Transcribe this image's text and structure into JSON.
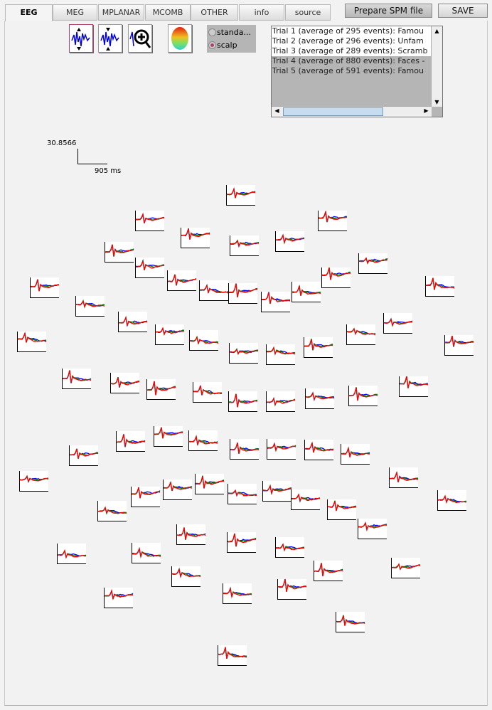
{
  "tabs": [
    {
      "label": "EEG",
      "active": true
    },
    {
      "label": "MEG"
    },
    {
      "label": "MPLANAR"
    },
    {
      "label": "MCOMB"
    },
    {
      "label": "OTHER"
    },
    {
      "label": "info"
    },
    {
      "label": "source"
    }
  ],
  "buttons": {
    "prepare": "Prepare SPM file",
    "save": "SAVE"
  },
  "tools": [
    "increase-amplitude-icon",
    "decrease-amplitude-icon",
    "zoom-in-icon",
    "scalp-map-icon"
  ],
  "layout_options": {
    "standard": "standa...",
    "scalp": "scalp",
    "selected": "scalp"
  },
  "trials": [
    "Trial 1 (average of 295 events): Famou",
    "Trial 2 (average of 296 events): Unfam",
    "Trial 3 (average of 289 events): Scramb",
    "Trial 4 (average of 880 events): Faces -",
    "Trial 5 (average of 591 events): Famou"
  ],
  "scale": {
    "amplitude": "30.8566",
    "time": "905 ms"
  },
  "colors": {
    "trace1": "#ff0000",
    "trace2": "#008000",
    "trace3": "#0000ff"
  }
}
